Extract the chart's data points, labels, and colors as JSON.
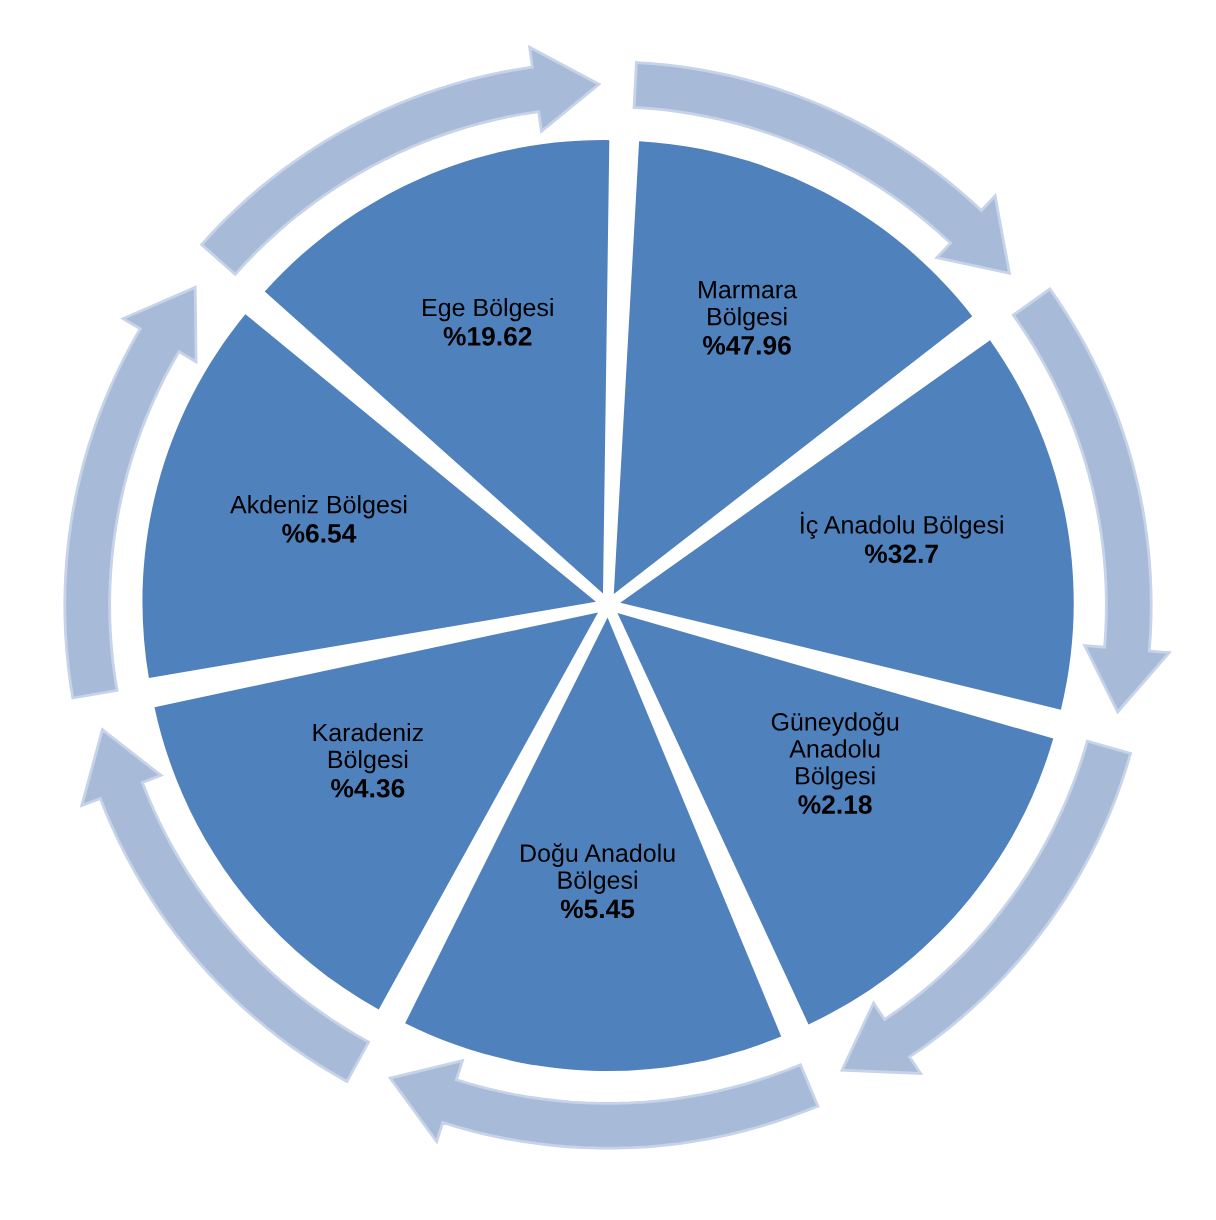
{
  "chart_data": {
    "type": "other",
    "categories": [
      "Marmara\nBölgesi",
      "İç Anadolu Bölgesi",
      "Güneydoğu\nAnadolu\nBölgesi",
      "Doğu Anadolu\nBölgesi",
      "Karadeniz\nBölgesi",
      "Akdeniz Bölgesi",
      "Ege Bölgesi"
    ],
    "values": [
      47.96,
      32.7,
      2.18,
      5.45,
      4.36,
      6.54,
      19.62
    ],
    "value_labels": [
      "%47.96",
      "%32.7",
      "%2.18",
      "%5.45",
      "%4.36",
      "%6.54",
      "%19.62"
    ],
    "colors": [
      "#4f81bd",
      "#4f81bd",
      "#4f81bd",
      "#4f81bd",
      "#4f81bd",
      "#4f81bd",
      "#4f81bd"
    ]
  }
}
